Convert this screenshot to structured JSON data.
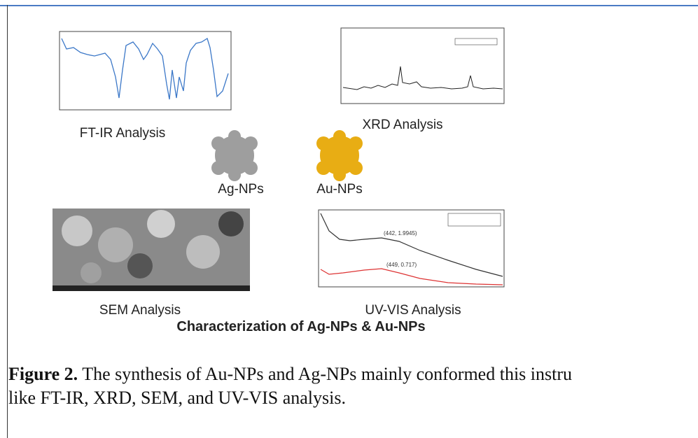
{
  "figure": {
    "panels": {
      "ftir": "FT-IR Analysis",
      "xrd": "XRD Analysis",
      "ag": "Ag-NPs",
      "au": "Au-NPs",
      "sem": "SEM Analysis",
      "uvvis": "UV-VIS Analysis"
    },
    "uvvis_annotations": [
      "(442, 1.9945)",
      "(449, 0.717)"
    ],
    "title": "Characterization of Ag-NPs & Au-NPs"
  },
  "caption": {
    "label": "Figure 2.",
    "lines": [
      "The synthesis of Au-NPs and Ag-NPs mainly conformed this instru",
      "like FT-IR, XRD, SEM, and UV-VIS analysis."
    ]
  }
}
